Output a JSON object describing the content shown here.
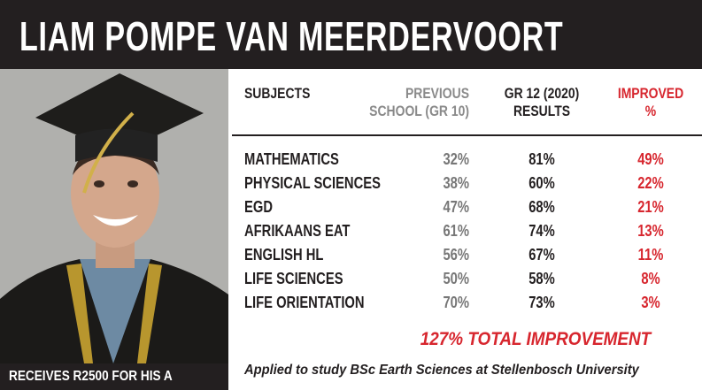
{
  "header": {
    "title": "LIAM POMPE VAN MEERDERVOORT"
  },
  "caption": "RECEIVES R2500 FOR HIS A",
  "table": {
    "columns": [
      "SUBJECTS",
      "PREVIOUS\nSCHOOL (GR 10)",
      "GR 12 (2020)\nRESULTS",
      "IMPROVED\n%"
    ],
    "rows": [
      [
        "MATHEMATICS",
        "32%",
        "81%",
        "49%"
      ],
      [
        "PHYSICAL SCIENCES",
        "38%",
        "60%",
        "22%"
      ],
      [
        "EGD",
        "47%",
        "68%",
        "21%"
      ],
      [
        "AFRIKAANS EAT",
        "61%",
        "74%",
        "13%"
      ],
      [
        "ENGLISH HL",
        "56%",
        "67%",
        "11%"
      ],
      [
        "LIFE SCIENCES",
        "50%",
        "58%",
        "8%"
      ],
      [
        "LIFE ORIENTATION",
        "70%",
        "73%",
        "3%"
      ]
    ]
  },
  "summary": {
    "total": "127% TOTAL IMPROVEMENT",
    "applied": "Applied to study  BSc Earth Sciences at Stellenbosch University"
  }
}
